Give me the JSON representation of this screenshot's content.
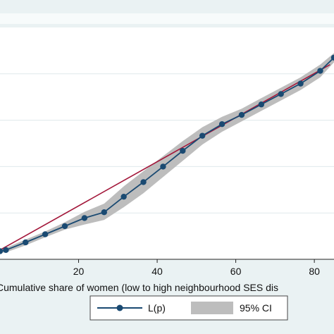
{
  "chart_data": {
    "type": "line",
    "title": "",
    "xlabel": "Cumulative share of women (low to high neighbourhood SES dis",
    "ylabel": "",
    "xlim": [
      0,
      85
    ],
    "ylim": [
      0,
      100
    ],
    "x_ticks": [
      20,
      40,
      60,
      80
    ],
    "y_grid": [
      0,
      20,
      40,
      60,
      80
    ],
    "grid": true,
    "legend_position": "bottom",
    "colors": {
      "background": "#eaf2f3",
      "plot_background": "#ffffff",
      "grid": "#dfe9ec",
      "series_line": "#1a4a72",
      "series_marker": "#1a4a72",
      "equality_line": "#a3173a",
      "ci_band": "#bdbdbd"
    },
    "equality_line": {
      "x": [
        0,
        84
      ],
      "y": [
        4,
        84
      ]
    },
    "series": [
      {
        "name": "L(p)",
        "x": [
          0,
          1.5,
          6.5,
          11.5,
          16.5,
          21.5,
          26.5,
          31.5,
          36.5,
          41.5,
          46.5,
          51.5,
          56.5,
          61.5,
          66.5,
          71.5,
          76.5,
          81.5,
          85
        ],
        "y": [
          3.5,
          4.0,
          7.3,
          10.8,
          14.3,
          17.8,
          20.3,
          27.0,
          33.3,
          40.0,
          46.8,
          53.3,
          58.3,
          62.3,
          66.8,
          71.3,
          75.8,
          81.3,
          87.0
        ]
      }
    ],
    "confidence_band": {
      "name": "95% CI",
      "x": [
        0,
        1.5,
        6.5,
        11.5,
        16.5,
        21.5,
        26.5,
        31.5,
        36.5,
        41.5,
        46.5,
        51.5,
        56.5,
        61.5,
        66.5,
        71.5,
        76.5,
        81.5,
        85
      ],
      "upper": [
        4.2,
        5.0,
        8.5,
        12.0,
        16.0,
        20.5,
        24.0,
        31.5,
        38.0,
        44.5,
        51.0,
        57.0,
        61.5,
        65.0,
        69.5,
        74.0,
        78.5,
        84.0,
        89.0
      ],
      "lower": [
        2.8,
        3.0,
        6.0,
        9.5,
        12.8,
        15.0,
        17.0,
        22.5,
        28.5,
        35.5,
        42.5,
        49.5,
        55.0,
        59.5,
        64.0,
        68.5,
        73.0,
        78.5,
        85.0
      ]
    }
  },
  "legend": {
    "items": [
      {
        "label": "L(p)"
      },
      {
        "label": "95% CI"
      }
    ]
  }
}
